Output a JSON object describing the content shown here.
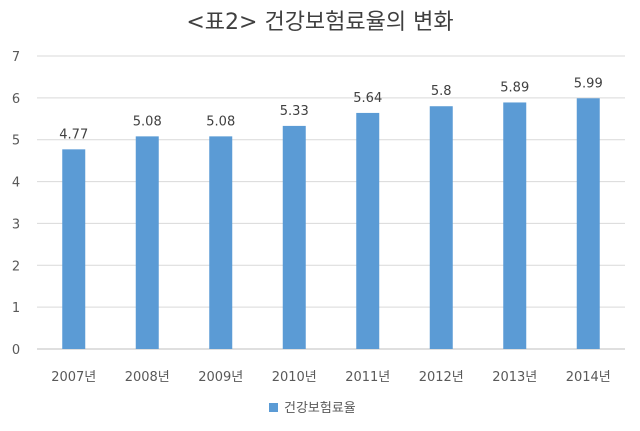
{
  "chart_data": {
    "type": "bar",
    "title": "<표2> 건강보험료율의 변화",
    "categories": [
      "2007년",
      "2008년",
      "2009년",
      "2010년",
      "2011년",
      "2012년",
      "2013년",
      "2014년"
    ],
    "series": [
      {
        "name": "건강보험료율",
        "values": [
          4.77,
          5.08,
          5.08,
          5.33,
          5.64,
          5.8,
          5.89,
          5.99
        ],
        "labels": [
          "4.77",
          "5.08",
          "5.08",
          "5.33",
          "5.64",
          "5.8",
          "5.89",
          "5.99"
        ],
        "color": "#5b9bd5"
      }
    ],
    "ylim": [
      0,
      7
    ],
    "yticks": [
      "0",
      "1",
      "2",
      "3",
      "4",
      "5",
      "6",
      "7"
    ],
    "grid": true,
    "legend_position": "bottom",
    "xlabel": "",
    "ylabel": ""
  }
}
